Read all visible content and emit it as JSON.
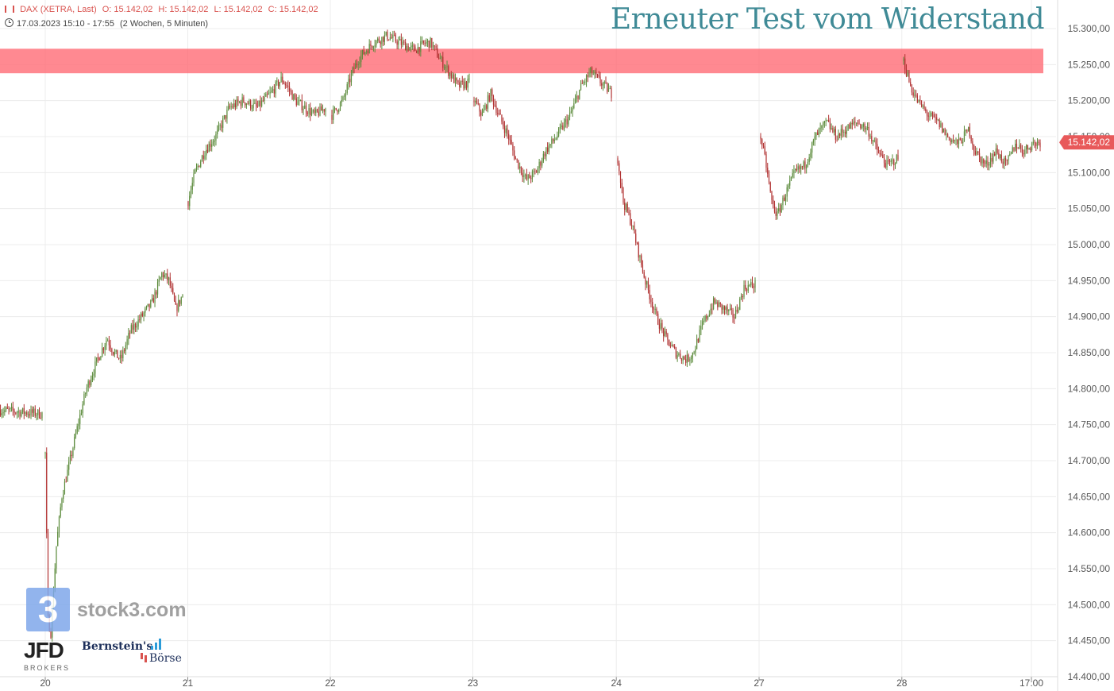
{
  "header": {
    "instrument": "DAX (XETRA, Last)",
    "open": "O: 15.142,02",
    "high": "H: 15.142,02",
    "low": "L: 15.142,02",
    "close": "C: 15.142,02",
    "range": "17.03.2023 15:10 - 17:55",
    "interval": "(2 Wochen, 5 Minuten)"
  },
  "title": "Erneuter Test vom Widerstand",
  "branding": {
    "stock3_logo": "3",
    "stock3_text": "stock3.com",
    "jfd": "JFD",
    "jfd_sub": "BROKERS",
    "bernstein_1": "Bernstein's",
    "bernstein_2": "Börse"
  },
  "colors": {
    "up": "#5a8a3a",
    "down": "#b03030",
    "resistance_zone": "#ff6b75",
    "last_price": "#e8595a",
    "grid": "#ececec",
    "title": "#3f8a96"
  },
  "chart_data": {
    "type": "candlestick",
    "title": "Erneuter Test vom Widerstand",
    "ylim": [
      14400,
      15320
    ],
    "y_ticks": [
      "14.400,00",
      "14.450,00",
      "14.500,00",
      "14.550,00",
      "14.600,00",
      "14.650,00",
      "14.700,00",
      "14.750,00",
      "14.800,00",
      "14.850,00",
      "14.900,00",
      "14.950,00",
      "15.000,00",
      "15.050,00",
      "15.100,00",
      "15.150,00",
      "15.200,00",
      "15.250,00",
      "15.300,00"
    ],
    "y_tick_values": [
      14400,
      14450,
      14500,
      14550,
      14600,
      14650,
      14700,
      14750,
      14800,
      14850,
      14900,
      14950,
      15000,
      15050,
      15100,
      15150,
      15200,
      15250,
      15300
    ],
    "x_ticks": [
      "20",
      "21",
      "22",
      "23",
      "24",
      "27",
      "28",
      "17:00"
    ],
    "x_tick_pos": [
      0.032,
      0.177,
      0.327,
      0.476,
      0.624,
      0.772,
      0.921,
      1.053
    ],
    "last_price": 15142.02,
    "last_price_label": "15.142,02",
    "resistance_zone": [
      15238,
      15272
    ],
    "days": [
      {
        "label": "17",
        "path": [
          [
            0,
            14810
          ],
          [
            0.05,
            14760
          ],
          [
            0.12,
            14700
          ],
          [
            0.2,
            14740
          ],
          [
            0.3,
            14770
          ],
          [
            0.45,
            14785
          ],
          [
            0.55,
            14775
          ],
          [
            0.7,
            14770
          ],
          [
            1,
            14765
          ]
        ]
      },
      {
        "label": "20",
        "path": [
          [
            0,
            14710
          ],
          [
            0.02,
            14480
          ],
          [
            0.04,
            14460
          ],
          [
            0.08,
            14580
          ],
          [
            0.12,
            14650
          ],
          [
            0.18,
            14700
          ],
          [
            0.25,
            14760
          ],
          [
            0.3,
            14800
          ],
          [
            0.38,
            14840
          ],
          [
            0.45,
            14870
          ],
          [
            0.5,
            14850
          ],
          [
            0.55,
            14840
          ],
          [
            0.62,
            14880
          ],
          [
            0.7,
            14900
          ],
          [
            0.78,
            14920
          ],
          [
            0.85,
            14960
          ],
          [
            0.9,
            14950
          ],
          [
            0.95,
            14910
          ],
          [
            1,
            14930
          ]
        ]
      },
      {
        "label": "21",
        "path": [
          [
            0,
            15060
          ],
          [
            0.05,
            15100
          ],
          [
            0.12,
            15130
          ],
          [
            0.2,
            15150
          ],
          [
            0.3,
            15190
          ],
          [
            0.4,
            15200
          ],
          [
            0.5,
            15190
          ],
          [
            0.6,
            15210
          ],
          [
            0.68,
            15230
          ],
          [
            0.72,
            15220
          ],
          [
            0.78,
            15200
          ],
          [
            0.85,
            15190
          ],
          [
            0.92,
            15180
          ],
          [
            1,
            15190
          ]
        ]
      },
      {
        "label": "22",
        "path": [
          [
            0,
            15180
          ],
          [
            0.08,
            15200
          ],
          [
            0.15,
            15240
          ],
          [
            0.2,
            15260
          ],
          [
            0.3,
            15280
          ],
          [
            0.4,
            15290
          ],
          [
            0.5,
            15280
          ],
          [
            0.6,
            15270
          ],
          [
            0.68,
            15280
          ],
          [
            0.72,
            15280
          ],
          [
            0.78,
            15260
          ],
          [
            0.85,
            15240
          ],
          [
            0.92,
            15220
          ],
          [
            1,
            15225
          ]
        ]
      },
      {
        "label": "23",
        "path": [
          [
            0,
            15200
          ],
          [
            0.06,
            15180
          ],
          [
            0.12,
            15210
          ],
          [
            0.18,
            15180
          ],
          [
            0.25,
            15150
          ],
          [
            0.3,
            15120
          ],
          [
            0.38,
            15090
          ],
          [
            0.45,
            15100
          ],
          [
            0.52,
            15130
          ],
          [
            0.6,
            15150
          ],
          [
            0.7,
            15180
          ],
          [
            0.78,
            15220
          ],
          [
            0.85,
            15240
          ],
          [
            0.9,
            15230
          ],
          [
            1,
            15210
          ]
        ]
      },
      {
        "label": "24",
        "path": [
          [
            0,
            15120
          ],
          [
            0.04,
            15060
          ],
          [
            0.1,
            15030
          ],
          [
            0.15,
            14990
          ],
          [
            0.2,
            14950
          ],
          [
            0.28,
            14900
          ],
          [
            0.35,
            14870
          ],
          [
            0.42,
            14850
          ],
          [
            0.5,
            14840
          ],
          [
            0.55,
            14850
          ],
          [
            0.62,
            14890
          ],
          [
            0.7,
            14920
          ],
          [
            0.78,
            14910
          ],
          [
            0.85,
            14900
          ],
          [
            0.92,
            14940
          ],
          [
            1,
            14945
          ]
        ]
      },
      {
        "label": "27",
        "path": [
          [
            0,
            15150
          ],
          [
            0.04,
            15110
          ],
          [
            0.08,
            15060
          ],
          [
            0.12,
            15040
          ],
          [
            0.18,
            15070
          ],
          [
            0.25,
            15100
          ],
          [
            0.32,
            15110
          ],
          [
            0.4,
            15150
          ],
          [
            0.48,
            15170
          ],
          [
            0.55,
            15150
          ],
          [
            0.62,
            15160
          ],
          [
            0.7,
            15170
          ],
          [
            0.78,
            15160
          ],
          [
            0.85,
            15130
          ],
          [
            0.92,
            15110
          ],
          [
            1,
            15120
          ]
        ]
      },
      {
        "label": "28",
        "path": [
          [
            0,
            15255
          ],
          [
            0.05,
            15220
          ],
          [
            0.1,
            15200
          ],
          [
            0.18,
            15180
          ],
          [
            0.25,
            15170
          ],
          [
            0.32,
            15150
          ],
          [
            0.4,
            15140
          ],
          [
            0.48,
            15160
          ],
          [
            0.52,
            15130
          ],
          [
            0.6,
            15110
          ],
          [
            0.68,
            15130
          ],
          [
            0.75,
            15110
          ],
          [
            0.82,
            15140
          ],
          [
            0.88,
            15130
          ],
          [
            0.94,
            15140
          ],
          [
            1,
            15142
          ]
        ]
      }
    ]
  }
}
